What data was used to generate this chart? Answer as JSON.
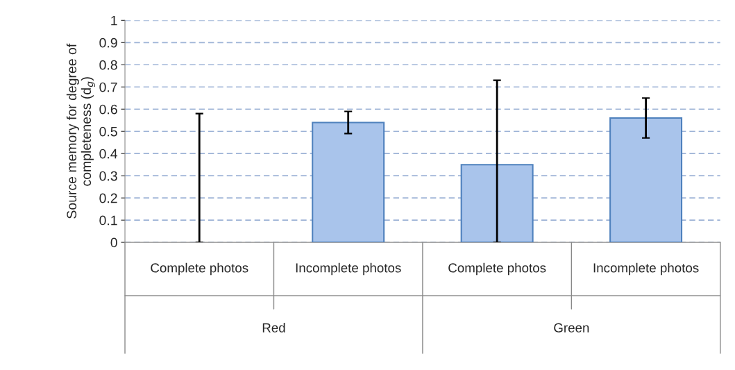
{
  "chart_data": {
    "type": "bar",
    "ylabel": "Source memory for degree of\ncompleteness (d$_{g}$)",
    "categories": [
      "Complete photos",
      "Incomplete photos",
      "Complete photos",
      "Incomplete photos"
    ],
    "values": [
      0,
      0.54,
      0.35,
      0.56
    ],
    "errors": [
      [
        0,
        0.58
      ],
      [
        0.49,
        0.59
      ],
      [
        0,
        0.73
      ],
      [
        0.47,
        0.65
      ]
    ],
    "color": "#a9c4eb",
    "ylim": [
      0,
      1
    ],
    "yticks": [
      0,
      0.1,
      0.2,
      0.3,
      0.4,
      0.5,
      0.6,
      0.7,
      0.8,
      0.9,
      1
    ],
    "grid": "y",
    "legend": false,
    "annotations": [
      "Red",
      "Green"
    ]
  }
}
